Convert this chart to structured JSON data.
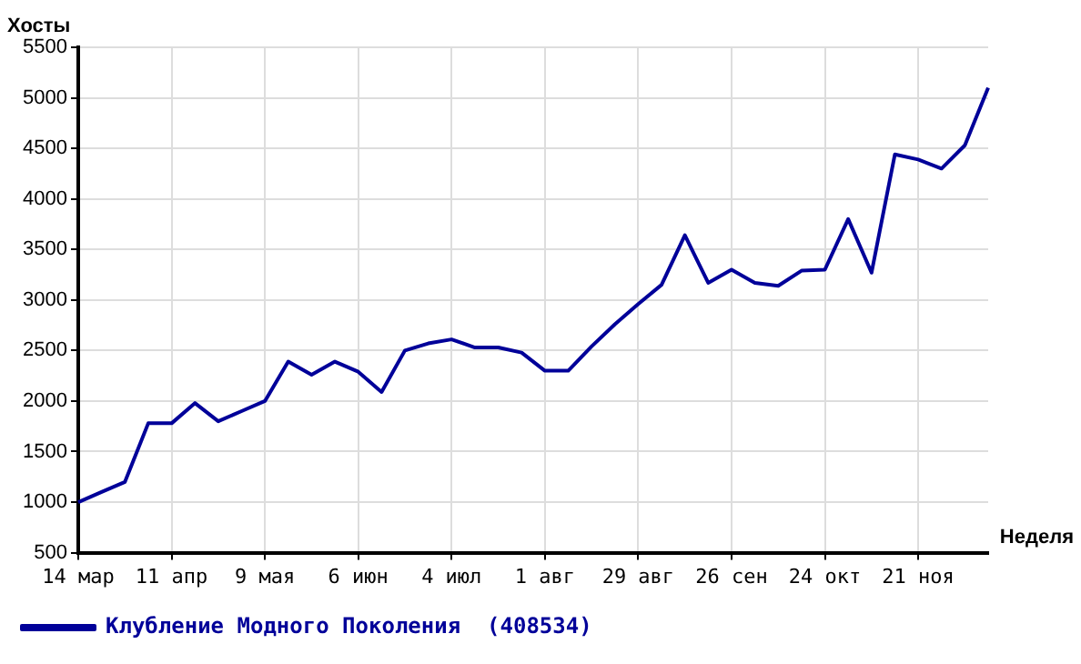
{
  "chart_data": {
    "type": "line",
    "xlabel": "Неделя",
    "ylabel": "Хосты",
    "categories": [
      "14 мар",
      null,
      null,
      null,
      "11 апр",
      null,
      null,
      null,
      "9 мая",
      null,
      null,
      null,
      "6 июн",
      null,
      null,
      null,
      "4 июл",
      null,
      null,
      null,
      "1 авг",
      null,
      null,
      null,
      "29 авг",
      null,
      null,
      null,
      "26 сен",
      null,
      null,
      null,
      "24 окт",
      null,
      null,
      null,
      "21 ноя",
      null,
      null,
      null
    ],
    "series": [
      {
        "name": "Клубление Модного Поколения  (408534)",
        "color": "#000099",
        "values": [
          1000,
          1100,
          1200,
          1780,
          1780,
          1980,
          1800,
          1900,
          2000,
          2390,
          2260,
          2390,
          2290,
          2090,
          2500,
          2570,
          2610,
          2530,
          2530,
          2480,
          2300,
          2300,
          2540,
          2760,
          2960,
          3150,
          3640,
          3170,
          3300,
          3170,
          3140,
          3290,
          3300,
          3800,
          3270,
          4440,
          4390,
          4300,
          4530,
          5100
        ]
      }
    ],
    "ylim": [
      500,
      5500
    ],
    "yticks": [
      500,
      1000,
      1500,
      2000,
      2500,
      3000,
      3500,
      4000,
      4500,
      5000,
      5500
    ],
    "grid": true,
    "legend": "bottom",
    "marker": "none",
    "line_style": "solid"
  }
}
